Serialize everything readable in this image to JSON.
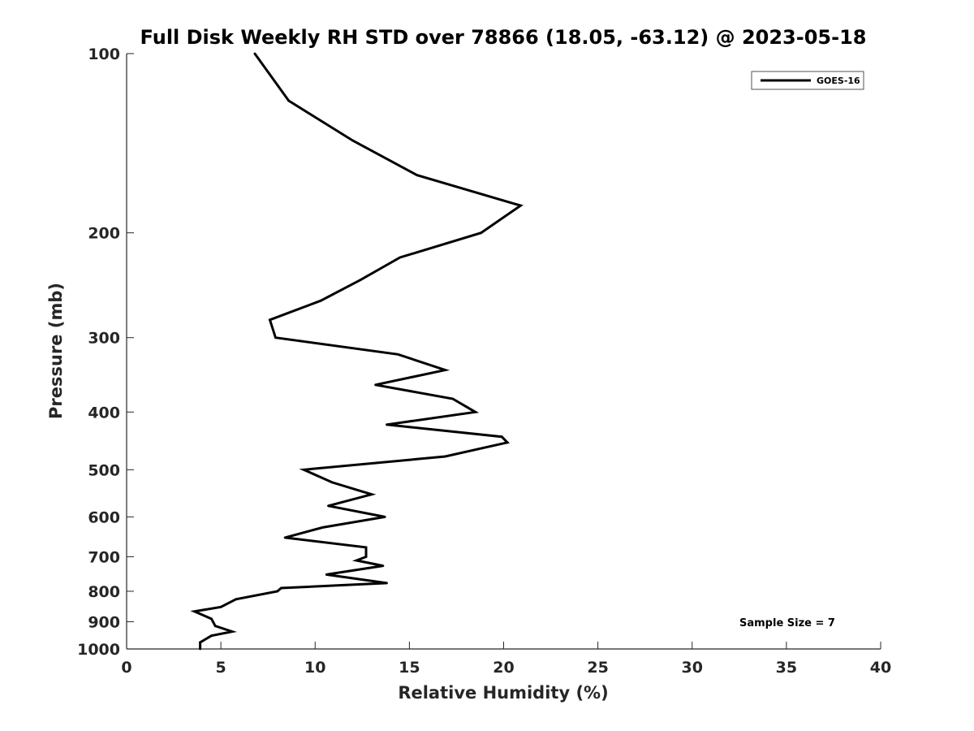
{
  "chart_data": {
    "type": "line",
    "title": "Full Disk Weekly RH STD over 78866 (18.05, -63.12) @ 2023-05-18",
    "xlabel": "Relative Humidity (%)",
    "ylabel": "Pressure (mb)",
    "xlim": [
      0,
      40
    ],
    "ylim": [
      100,
      1000
    ],
    "y_scale": "log",
    "y_reversed": true,
    "xticks": [
      0,
      5,
      10,
      15,
      20,
      25,
      30,
      35,
      40
    ],
    "xtick_labels": [
      "0",
      "5",
      "10",
      "15",
      "20",
      "25",
      "30",
      "35",
      "40"
    ],
    "yticks": [
      100,
      200,
      300,
      400,
      500,
      600,
      700,
      800,
      900,
      1000
    ],
    "ytick_labels": [
      "100",
      "200",
      "300",
      "400",
      "500",
      "600",
      "700",
      "800",
      "900",
      "1000"
    ],
    "grid": false,
    "legend_position": "top-right",
    "annotation": "Sample Size = 7",
    "series": [
      {
        "name": "GOES-16",
        "color": "#000000",
        "points": [
          [
            6.8,
            100
          ],
          [
            8.6,
            120
          ],
          [
            12.0,
            140
          ],
          [
            15.4,
            160
          ],
          [
            20.9,
            180
          ],
          [
            18.8,
            200
          ],
          [
            14.5,
            220
          ],
          [
            12.4,
            240
          ],
          [
            10.3,
            260
          ],
          [
            7.6,
            280
          ],
          [
            7.9,
            300
          ],
          [
            14.4,
            320
          ],
          [
            16.9,
            340
          ],
          [
            13.2,
            360
          ],
          [
            17.3,
            380
          ],
          [
            18.5,
            400
          ],
          [
            13.8,
            420
          ],
          [
            19.9,
            440
          ],
          [
            20.2,
            450
          ],
          [
            16.9,
            475
          ],
          [
            9.4,
            500
          ],
          [
            10.9,
            525
          ],
          [
            13.0,
            550
          ],
          [
            10.7,
            575
          ],
          [
            13.7,
            600
          ],
          [
            10.4,
            625
          ],
          [
            8.4,
            650
          ],
          [
            12.7,
            675
          ],
          [
            12.7,
            700
          ],
          [
            12.2,
            710
          ],
          [
            13.6,
            725
          ],
          [
            10.6,
            750
          ],
          [
            13.8,
            775
          ],
          [
            8.2,
            790
          ],
          [
            8.0,
            800
          ],
          [
            5.8,
            825
          ],
          [
            5.0,
            850
          ],
          [
            3.6,
            865
          ],
          [
            4.5,
            890
          ],
          [
            4.7,
            915
          ],
          [
            5.6,
            935
          ],
          [
            4.5,
            950
          ],
          [
            3.9,
            975
          ],
          [
            3.9,
            1000
          ]
        ]
      }
    ]
  }
}
